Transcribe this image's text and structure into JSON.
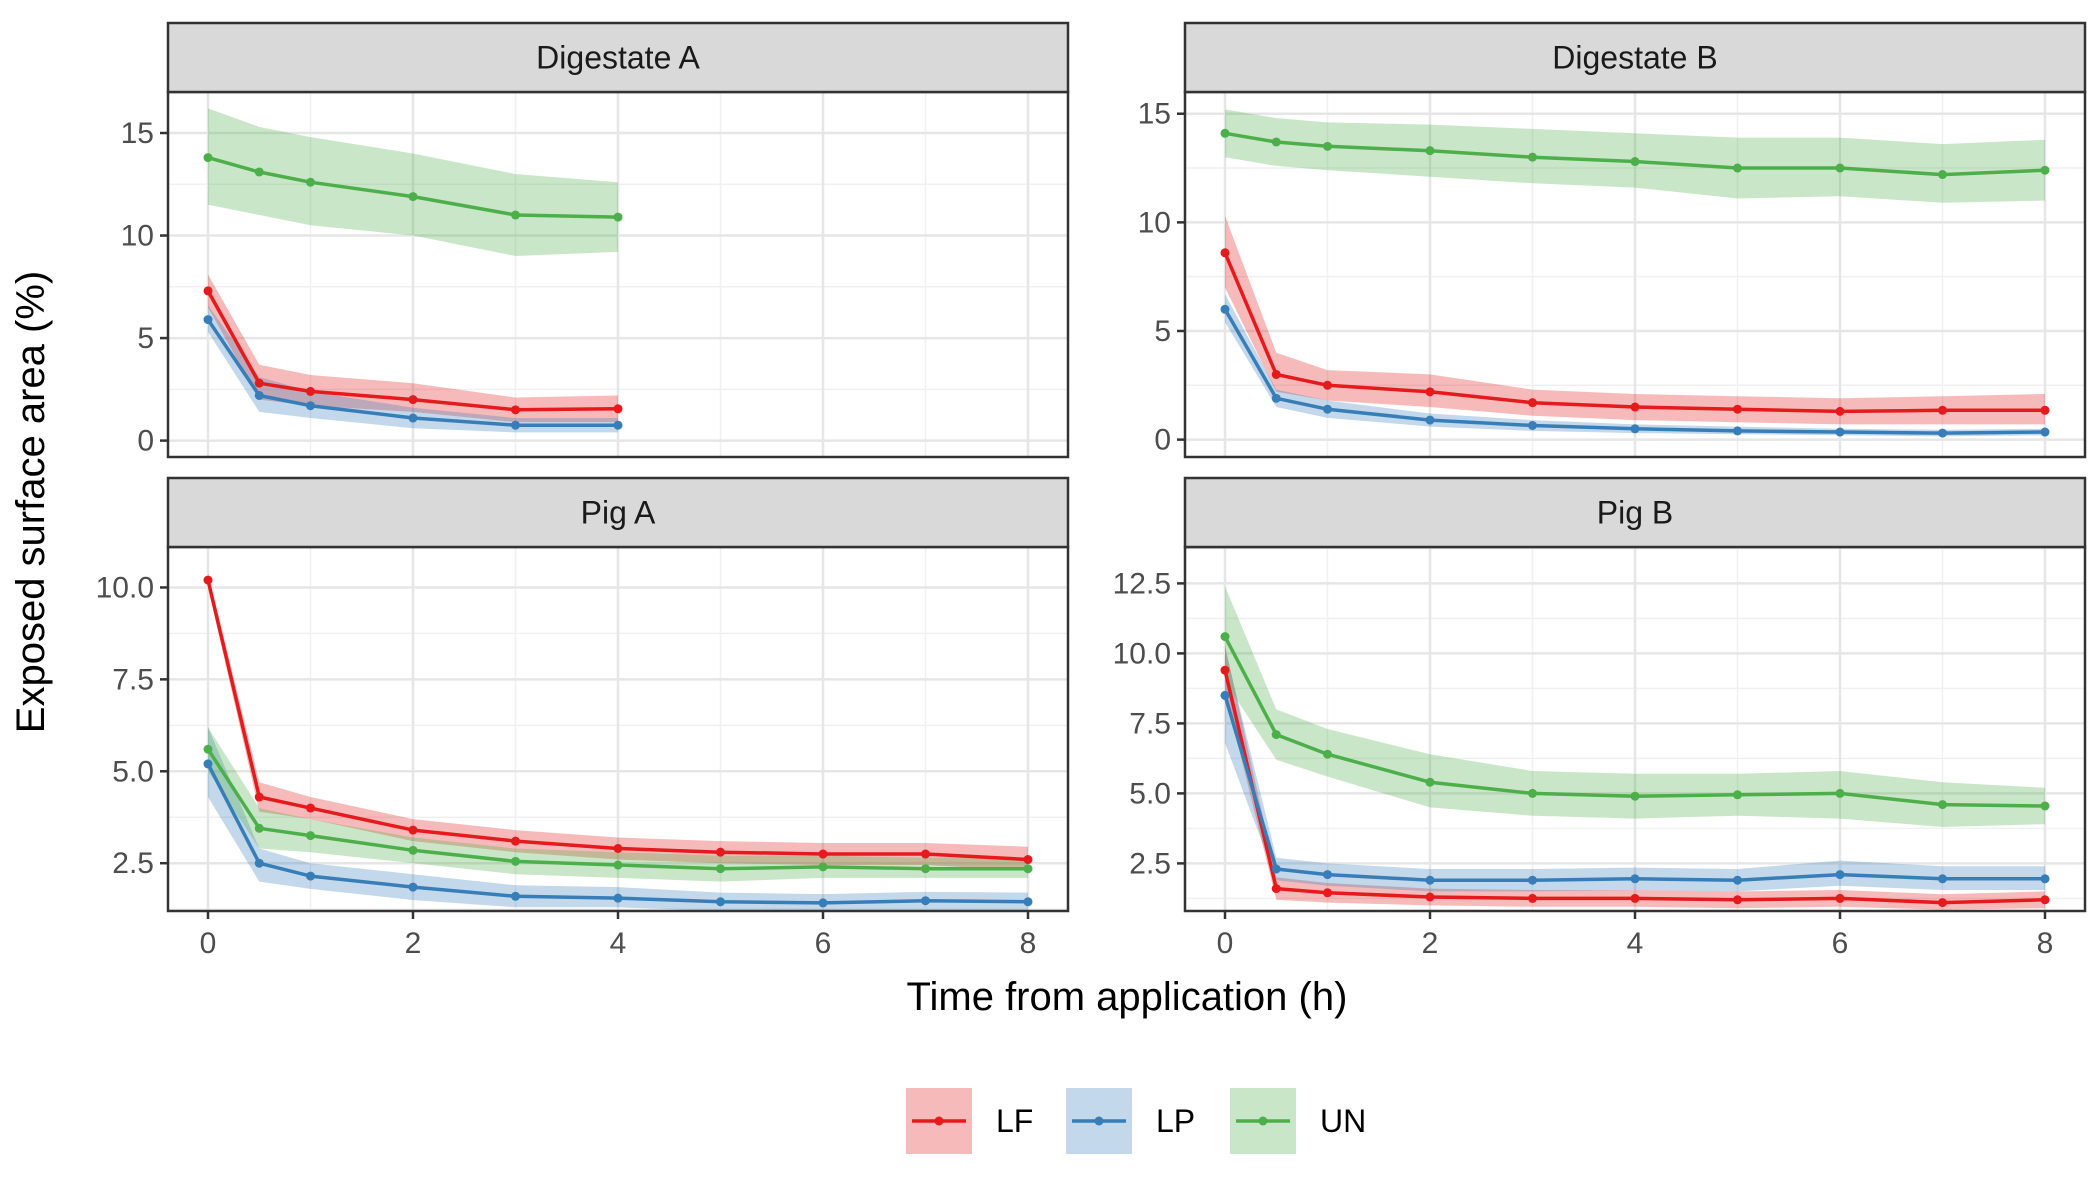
{
  "colors": {
    "LF": "#E41A1C",
    "LP": "#377EB8",
    "UN": "#4DAF4A"
  },
  "chart_data": {
    "type": "line",
    "xlabel": "Time from application (h)",
    "ylabel": "Exposed surface area (%)",
    "grid": true,
    "legend_position": "bottom",
    "legend": [
      "LF",
      "LP",
      "UN"
    ],
    "xlim": [
      0,
      8
    ],
    "x_ticks": [
      0,
      2,
      4,
      6,
      8
    ],
    "panels": [
      {
        "title": "Digestate A",
        "ylim": [
          -0.8,
          17
        ],
        "y_ticks": [
          0,
          5,
          10,
          15
        ],
        "y_tick_labels": [
          "0",
          "5",
          "10",
          "15"
        ],
        "series": [
          {
            "name": "LF",
            "x": [
              0,
              0.5,
              1,
              2,
              3,
              4
            ],
            "y": [
              7.3,
              2.8,
              2.4,
              2.0,
              1.5,
              1.55
            ],
            "lower": [
              6.5,
              2.0,
              1.7,
              1.4,
              0.9,
              0.9
            ],
            "upper": [
              8.1,
              3.7,
              3.2,
              2.8,
              2.1,
              2.2
            ]
          },
          {
            "name": "LP",
            "x": [
              0,
              0.5,
              1,
              2,
              3,
              4
            ],
            "y": [
              5.9,
              2.2,
              1.7,
              1.1,
              0.75,
              0.75
            ],
            "lower": [
              5.3,
              1.4,
              1.1,
              0.6,
              0.4,
              0.4
            ],
            "upper": [
              6.6,
              3.1,
              2.4,
              1.6,
              1.1,
              1.1
            ]
          },
          {
            "name": "UN",
            "x": [
              0,
              0.5,
              1,
              2,
              3,
              4
            ],
            "y": [
              13.8,
              13.1,
              12.6,
              11.9,
              11.0,
              10.9
            ],
            "lower": [
              11.5,
              11.0,
              10.5,
              10.0,
              9.0,
              9.2
            ],
            "upper": [
              16.2,
              15.3,
              14.8,
              14.0,
              13.0,
              12.6
            ]
          }
        ]
      },
      {
        "title": "Digestate B",
        "ylim": [
          -0.8,
          16
        ],
        "y_ticks": [
          0,
          5,
          10,
          15
        ],
        "y_tick_labels": [
          "0",
          "5",
          "10",
          "15"
        ],
        "series": [
          {
            "name": "LF",
            "x": [
              0,
              0.5,
              1,
              2,
              3,
              4,
              5,
              6,
              7,
              8
            ],
            "y": [
              8.6,
              3.0,
              2.5,
              2.2,
              1.7,
              1.5,
              1.4,
              1.3,
              1.35,
              1.35
            ],
            "lower": [
              7.0,
              2.2,
              1.8,
              1.5,
              1.1,
              0.9,
              0.8,
              0.7,
              0.7,
              0.7
            ],
            "upper": [
              10.3,
              4.0,
              3.2,
              3.0,
              2.3,
              2.1,
              2.0,
              1.9,
              2.0,
              2.1
            ]
          },
          {
            "name": "LP",
            "x": [
              0,
              0.5,
              1,
              2,
              3,
              4,
              5,
              6,
              7,
              8
            ],
            "y": [
              6.0,
              1.9,
              1.4,
              0.9,
              0.65,
              0.5,
              0.4,
              0.35,
              0.3,
              0.35
            ],
            "lower": [
              5.4,
              1.5,
              1.0,
              0.6,
              0.4,
              0.3,
              0.25,
              0.2,
              0.15,
              0.2
            ],
            "upper": [
              6.7,
              2.3,
              1.8,
              1.2,
              0.9,
              0.7,
              0.6,
              0.5,
              0.45,
              0.5
            ]
          },
          {
            "name": "UN",
            "x": [
              0,
              0.5,
              1,
              2,
              3,
              4,
              5,
              6,
              7,
              8
            ],
            "y": [
              14.1,
              13.7,
              13.5,
              13.3,
              13.0,
              12.8,
              12.5,
              12.5,
              12.2,
              12.4
            ],
            "lower": [
              13.0,
              12.6,
              12.4,
              12.1,
              11.8,
              11.6,
              11.1,
              11.2,
              10.9,
              11.0
            ],
            "upper": [
              15.2,
              14.8,
              14.6,
              14.5,
              14.3,
              14.1,
              13.9,
              13.9,
              13.6,
              13.8
            ]
          }
        ]
      },
      {
        "title": "Pig A",
        "ylim": [
          1.2,
          11.1
        ],
        "y_ticks": [
          2.5,
          5.0,
          7.5,
          10.0
        ],
        "y_tick_labels": [
          "2.5",
          "5.0",
          "7.5",
          "10.0"
        ],
        "series": [
          {
            "name": "LF",
            "x": [
              0,
              0.5,
              1,
              2,
              3,
              4,
              5,
              6,
              7,
              8
            ],
            "y": [
              10.2,
              4.3,
              4.0,
              3.4,
              3.1,
              2.9,
              2.8,
              2.75,
              2.75,
              2.6
            ],
            "lower": [
              10.0,
              3.9,
              3.7,
              3.1,
              2.8,
              2.6,
              2.5,
              2.45,
              2.45,
              2.3
            ],
            "upper": [
              10.4,
              4.7,
              4.3,
              3.7,
              3.4,
              3.2,
              3.1,
              3.05,
              3.05,
              2.95
            ]
          },
          {
            "name": "LP",
            "x": [
              0,
              0.5,
              1,
              2,
              3,
              4,
              5,
              6,
              7,
              8
            ],
            "y": [
              5.2,
              2.5,
              2.15,
              1.85,
              1.6,
              1.55,
              1.45,
              1.42,
              1.48,
              1.45
            ],
            "lower": [
              4.3,
              2.0,
              1.8,
              1.5,
              1.3,
              1.3,
              1.2,
              1.18,
              1.22,
              1.2
            ],
            "upper": [
              6.2,
              2.9,
              2.5,
              2.2,
              1.9,
              1.85,
              1.7,
              1.66,
              1.72,
              1.7
            ]
          },
          {
            "name": "UN",
            "x": [
              0,
              0.5,
              1,
              2,
              3,
              4,
              5,
              6,
              7,
              8
            ],
            "y": [
              5.6,
              3.45,
              3.25,
              2.85,
              2.55,
              2.45,
              2.35,
              2.4,
              2.35,
              2.35
            ],
            "lower": [
              5.0,
              2.9,
              2.8,
              2.5,
              2.2,
              2.1,
              2.0,
              2.1,
              2.1,
              2.1
            ],
            "upper": [
              6.2,
              4.0,
              3.7,
              3.2,
              2.9,
              2.8,
              2.7,
              2.7,
              2.65,
              2.65
            ]
          }
        ]
      },
      {
        "title": "Pig B",
        "ylim": [
          0.8,
          13.8
        ],
        "y_ticks": [
          2.5,
          5.0,
          7.5,
          10.0,
          12.5
        ],
        "y_tick_labels": [
          "2.5",
          "5.0",
          "7.5",
          "10.0",
          "12.5"
        ],
        "series": [
          {
            "name": "LF",
            "x": [
              0,
              0.5,
              1,
              2,
              3,
              4,
              5,
              6,
              7,
              8
            ],
            "y": [
              9.4,
              1.6,
              1.45,
              1.3,
              1.25,
              1.25,
              1.2,
              1.25,
              1.1,
              1.2
            ],
            "lower": [
              8.6,
              1.2,
              1.1,
              1.0,
              0.95,
              0.95,
              0.9,
              0.95,
              0.85,
              0.9
            ],
            "upper": [
              10.3,
              2.0,
              1.8,
              1.6,
              1.55,
              1.55,
              1.5,
              1.55,
              1.4,
              1.5
            ]
          },
          {
            "name": "LP",
            "x": [
              0,
              0.5,
              1,
              2,
              3,
              4,
              5,
              6,
              7,
              8
            ],
            "y": [
              8.5,
              2.3,
              2.1,
              1.9,
              1.9,
              1.95,
              1.9,
              2.1,
              1.95,
              1.95
            ],
            "lower": [
              6.8,
              1.9,
              1.7,
              1.5,
              1.5,
              1.55,
              1.5,
              1.7,
              1.55,
              1.55
            ],
            "upper": [
              10.2,
              2.7,
              2.5,
              2.3,
              2.3,
              2.35,
              2.3,
              2.6,
              2.4,
              2.4
            ]
          },
          {
            "name": "UN",
            "x": [
              0,
              0.5,
              1,
              2,
              3,
              4,
              5,
              6,
              7,
              8
            ],
            "y": [
              10.6,
              7.1,
              6.4,
              5.4,
              5.0,
              4.9,
              4.95,
              5.0,
              4.6,
              4.55
            ],
            "lower": [
              9.0,
              6.2,
              5.6,
              4.5,
              4.2,
              4.1,
              4.2,
              4.1,
              3.8,
              3.9
            ],
            "upper": [
              12.4,
              8.0,
              7.3,
              6.4,
              5.8,
              5.7,
              5.7,
              5.8,
              5.4,
              5.2
            ]
          }
        ]
      }
    ]
  }
}
